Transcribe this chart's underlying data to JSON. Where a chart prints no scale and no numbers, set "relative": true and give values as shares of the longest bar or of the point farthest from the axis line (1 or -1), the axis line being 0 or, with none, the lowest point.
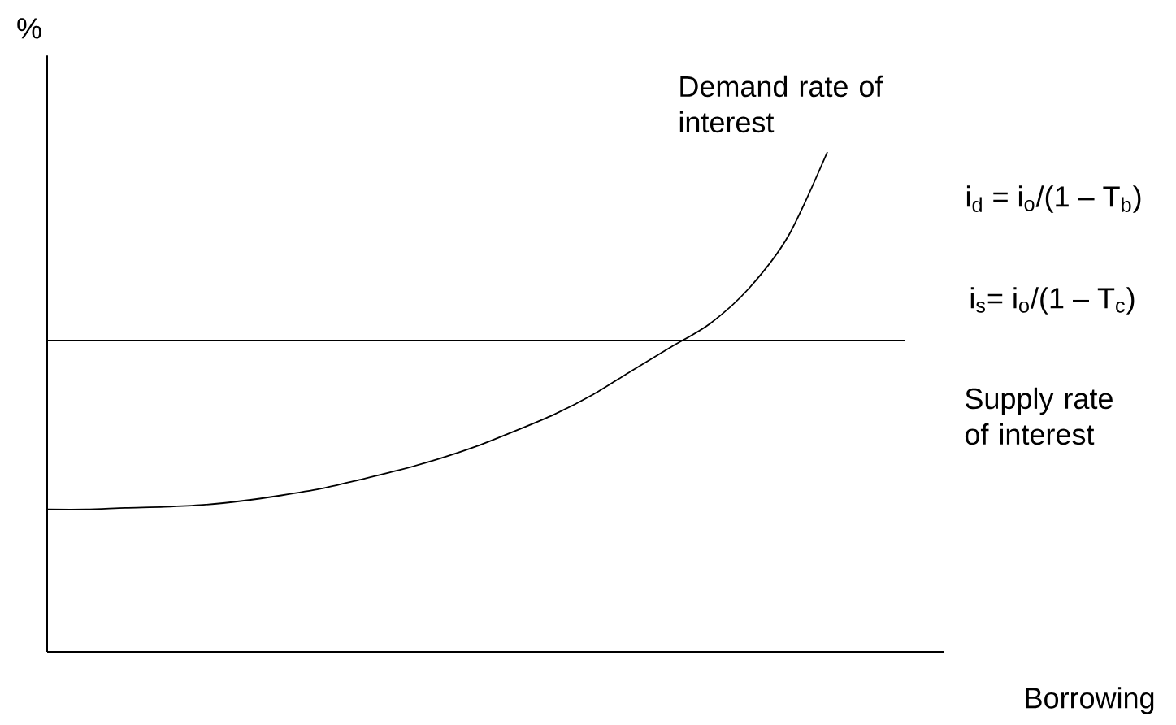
{
  "chart_data": {
    "type": "line",
    "relative": true,
    "ylabel": "%",
    "xlabel": "Borrowing",
    "categories": [
      null,
      null,
      null,
      null,
      null,
      null,
      null,
      null,
      null,
      null,
      null,
      null,
      null,
      null,
      null,
      null,
      null,
      null,
      null,
      null,
      null,
      null,
      null,
      null
    ],
    "series": [
      {
        "name": "Demand rate of interest",
        "color": "#000000",
        "values": [
          0.285,
          0.285,
          0.288,
          0.29,
          0.294,
          0.302,
          0.313,
          0.326,
          0.344,
          0.363,
          0.385,
          0.411,
          0.442,
          0.475,
          0.515,
          0.563,
          0.61,
          0.657,
          0.728,
          0.832,
          1,
          null,
          null,
          null
        ]
      },
      {
        "name": "Supply rate of interest",
        "color": "#000000",
        "values": [
          0.623,
          0.623,
          0.623,
          0.623,
          0.623,
          0.623,
          0.623,
          0.623,
          0.623,
          0.623,
          0.623,
          0.623,
          0.623,
          0.623,
          0.623,
          0.623,
          0.623,
          0.623,
          0.623,
          0.623,
          0.623,
          0.623,
          0.623,
          null
        ]
      }
    ],
    "annotations": [
      "i$_{d}$ = i$_{o}$/(1 – T$_{b}$)",
      "i$_{s}$= i$_{o}$/(1 – T$_{c}$)"
    ],
    "legend": false
  }
}
